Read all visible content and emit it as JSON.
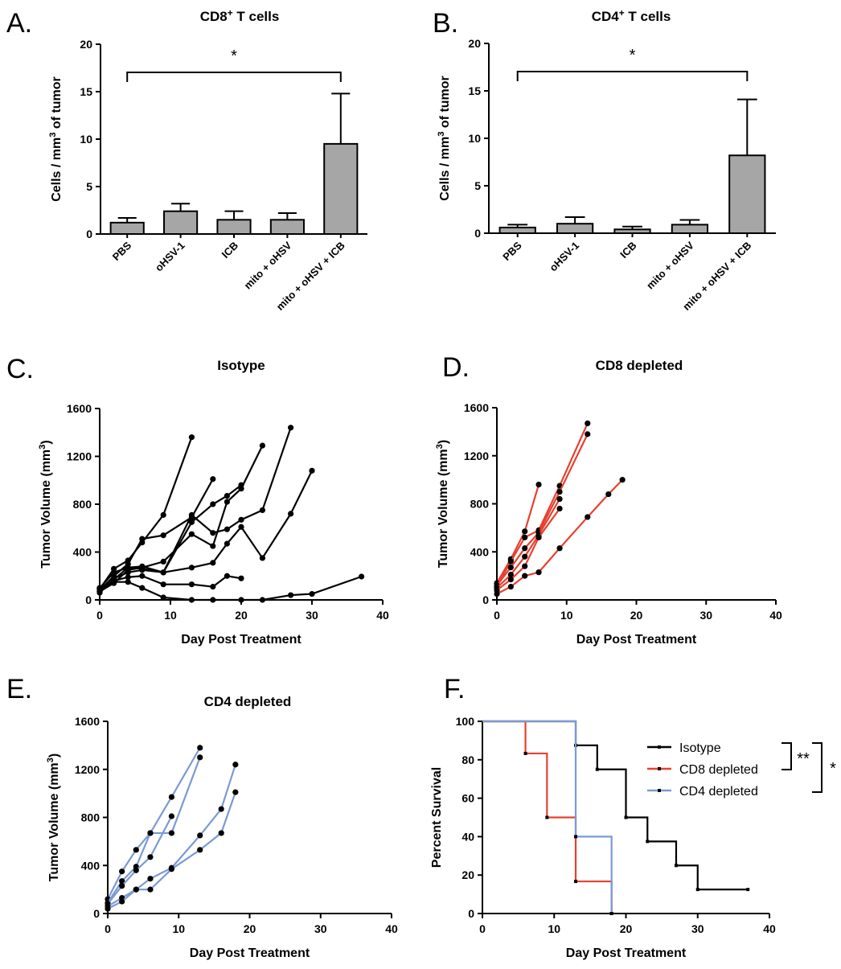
{
  "chart_data": [
    {
      "panel": "A.",
      "type": "bar",
      "title": "CD8",
      "title_sup": "+",
      "title_suffix": " T cells",
      "ylabel_pre": "Cells / mm",
      "ylabel_sup": "3",
      "ylabel_post": " of tumor",
      "categories": [
        "PBS",
        "oHSV-1",
        "ICB",
        "mito + oHSV",
        "mito + oHSV + ICB"
      ],
      "values": [
        1.2,
        2.4,
        1.5,
        1.5,
        9.5
      ],
      "errors": [
        0.5,
        0.8,
        0.9,
        0.7,
        5.3
      ],
      "ylim": [
        0,
        20
      ],
      "yticks": [
        0,
        5,
        10,
        15,
        20
      ],
      "significance": {
        "from": 0,
        "to": 4,
        "label": "*"
      }
    },
    {
      "panel": "B.",
      "type": "bar",
      "title": "CD4",
      "title_sup": "+",
      "title_suffix": " T cells",
      "ylabel_pre": "Cells / mm",
      "ylabel_sup": "3",
      "ylabel_post": " of tumor",
      "categories": [
        "PBS",
        "oHSV-1",
        "ICB",
        "mito + oHSV",
        "mito + oHSV + ICB"
      ],
      "values": [
        0.6,
        1.0,
        0.4,
        0.9,
        8.2
      ],
      "errors": [
        0.3,
        0.7,
        0.3,
        0.5,
        5.9
      ],
      "ylim": [
        0,
        20
      ],
      "yticks": [
        0,
        5,
        10,
        15,
        20
      ],
      "significance": {
        "from": 0,
        "to": 4,
        "label": "*"
      }
    },
    {
      "panel": "C.",
      "type": "line",
      "title": "Isotype",
      "color": "#000000",
      "xlabel": "Day Post Treatment",
      "ylabel_pre": "Tumor Volume",
      "ylabel_sup": "",
      "xlim": [
        0,
        40
      ],
      "ylim": [
        0,
        1600
      ],
      "xticks": [
        0,
        10,
        20,
        30,
        40
      ],
      "yticks": [
        0,
        400,
        800,
        1200,
        1600
      ],
      "series": [
        {
          "x": [
            0,
            2,
            4,
            6,
            9,
            13
          ],
          "y": [
            90,
            260,
            330,
            480,
            710,
            1360
          ]
        },
        {
          "x": [
            0,
            2,
            4,
            6,
            9,
            13,
            16
          ],
          "y": [
            80,
            200,
            300,
            510,
            540,
            690,
            1010
          ]
        },
        {
          "x": [
            0,
            2,
            4,
            6,
            9,
            13,
            16,
            18,
            20
          ],
          "y": [
            60,
            170,
            270,
            280,
            230,
            650,
            800,
            870,
            960
          ]
        },
        {
          "x": [
            0,
            2,
            4,
            6,
            9,
            13,
            16,
            18,
            20,
            23
          ],
          "y": [
            70,
            140,
            250,
            270,
            320,
            550,
            450,
            820,
            930,
            1290
          ]
        },
        {
          "x": [
            0,
            2,
            4,
            6,
            9,
            13,
            16,
            18,
            20,
            23,
            27
          ],
          "y": [
            100,
            230,
            270,
            260,
            230,
            710,
            560,
            590,
            670,
            750,
            1440
          ]
        },
        {
          "x": [
            0,
            2,
            4,
            6,
            9,
            13,
            16,
            18,
            20,
            23,
            27,
            30
          ],
          "y": [
            90,
            180,
            230,
            250,
            230,
            270,
            310,
            470,
            610,
            350,
            720,
            1080
          ]
        },
        {
          "x": [
            0,
            2,
            4,
            6,
            9,
            13,
            16,
            18,
            20
          ],
          "y": [
            70,
            160,
            190,
            200,
            130,
            130,
            110,
            200,
            180
          ]
        },
        {
          "x": [
            0,
            2,
            4,
            6,
            9,
            13,
            16,
            20,
            23,
            27,
            30,
            37
          ],
          "y": [
            100,
            150,
            150,
            100,
            20,
            0,
            0,
            0,
            0,
            40,
            50,
            195
          ]
        }
      ]
    },
    {
      "panel": "D.",
      "type": "line",
      "title": "CD8 depleted",
      "color": "#e8402f",
      "xlabel": "Day Post Treatment",
      "ylabel_pre": "Tumor Volume",
      "ylabel_sup": "",
      "xlim": [
        0,
        40
      ],
      "ylim": [
        0,
        1600
      ],
      "xticks": [
        0,
        10,
        20,
        30,
        40
      ],
      "yticks": [
        0,
        400,
        800,
        1200,
        1600
      ],
      "series": [
        {
          "x": [
            0,
            2,
            4,
            6
          ],
          "y": [
            140,
            340,
            570,
            960
          ]
        },
        {
          "x": [
            0,
            2,
            4,
            6,
            9,
            13
          ],
          "y": [
            110,
            320,
            520,
            580,
            950,
            1470
          ]
        },
        {
          "x": [
            0,
            2,
            4,
            6,
            9,
            13
          ],
          "y": [
            120,
            270,
            430,
            560,
            900,
            1380
          ]
        },
        {
          "x": [
            0,
            2,
            4,
            6,
            9
          ],
          "y": [
            100,
            210,
            360,
            540,
            840
          ]
        },
        {
          "x": [
            0,
            2,
            4,
            6,
            9
          ],
          "y": [
            80,
            170,
            280,
            520,
            760
          ]
        },
        {
          "x": [
            0,
            2,
            4,
            6,
            9,
            13,
            16,
            18
          ],
          "y": [
            50,
            110,
            200,
            230,
            430,
            690,
            880,
            1000
          ]
        }
      ]
    },
    {
      "panel": "E.",
      "type": "line",
      "title": "CD4 depleted",
      "color": "#7a9ad4",
      "xlabel": "Day Post Treatment",
      "ylabel_pre": "Tumor Volume",
      "ylabel_sup": "",
      "xlim": [
        0,
        40
      ],
      "ylim": [
        0,
        1600
      ],
      "xticks": [
        0,
        10,
        20,
        30,
        40
      ],
      "yticks": [
        0,
        400,
        800,
        1200,
        1600
      ],
      "series": [
        {
          "x": [
            0,
            2,
            4,
            6,
            9,
            13
          ],
          "y": [
            120,
            350,
            530,
            670,
            970,
            1380
          ]
        },
        {
          "x": [
            0,
            2,
            4,
            6,
            9,
            13
          ],
          "y": [
            90,
            270,
            390,
            670,
            670,
            1300
          ]
        },
        {
          "x": [
            0,
            2,
            4,
            6,
            9
          ],
          "y": [
            80,
            230,
            360,
            470,
            810
          ]
        },
        {
          "x": [
            0,
            2,
            4,
            6,
            9,
            13,
            16,
            18
          ],
          "y": [
            60,
            130,
            200,
            290,
            380,
            650,
            870,
            1240
          ]
        },
        {
          "x": [
            0,
            2,
            4,
            6,
            9,
            13,
            16,
            18
          ],
          "y": [
            40,
            100,
            200,
            200,
            370,
            530,
            670,
            1010
          ]
        }
      ]
    },
    {
      "panel": "F.",
      "type": "line",
      "subtype": "survival",
      "xlabel": "Day Post Treatment",
      "ylabel": "Percent Survival",
      "xlim": [
        0,
        40
      ],
      "ylim": [
        0,
        100
      ],
      "xticks": [
        0,
        10,
        20,
        30,
        40
      ],
      "yticks": [
        0,
        20,
        40,
        60,
        80,
        100
      ],
      "series": [
        {
          "name": "Isotype",
          "color": "#000000",
          "x": [
            0,
            13,
            16,
            20,
            23,
            27,
            30,
            37
          ],
          "y": [
            100,
            87.5,
            75,
            50,
            37.5,
            25,
            12.5,
            12.5
          ]
        },
        {
          "name": "CD8 depleted",
          "color": "#e8402f",
          "x": [
            0,
            6,
            9,
            13,
            18
          ],
          "y": [
            100,
            83.3,
            50,
            16.7,
            0
          ]
        },
        {
          "name": "CD4 depleted",
          "color": "#7a9ad4",
          "x": [
            0,
            13,
            18
          ],
          "y": [
            100,
            40,
            0
          ]
        }
      ],
      "significance": [
        {
          "label": "**",
          "between": [
            "Isotype",
            "CD8 depleted"
          ]
        },
        {
          "label": "*",
          "between": [
            "Isotype",
            "CD4 depleted"
          ]
        }
      ]
    }
  ]
}
